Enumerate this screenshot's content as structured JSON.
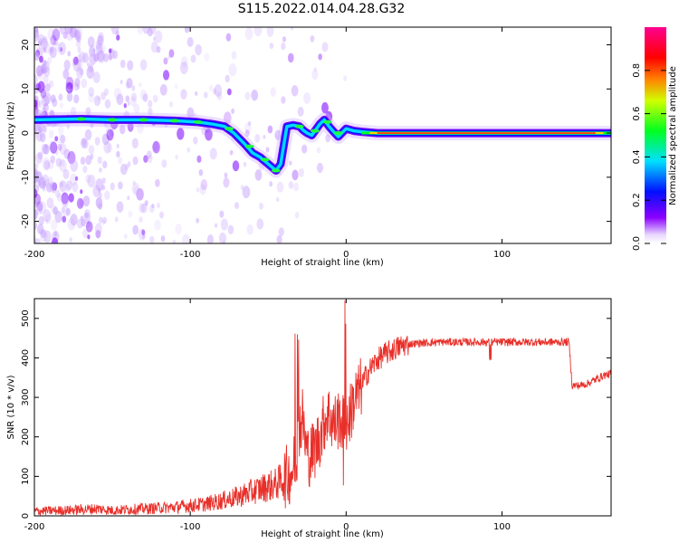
{
  "title": "S115.2022.014.04.28.G32",
  "chart_data": [
    {
      "type": "heatmap",
      "title": "",
      "xlabel": "Height of straight line (km)",
      "ylabel": "Frequency (Hz)",
      "xlim": [
        -200,
        170
      ],
      "ylim": [
        -25,
        24
      ],
      "xticks": [
        -200,
        -100,
        0,
        100
      ],
      "yticks": [
        -20,
        -10,
        0,
        10,
        20
      ],
      "grid": false,
      "dominant_frequency_track": {
        "x": [
          -200,
          -170,
          -150,
          -130,
          -110,
          -95,
          -85,
          -78,
          -72,
          -65,
          -60,
          -55,
          -50,
          -45,
          -42,
          -38,
          -34,
          -30,
          -27,
          -25,
          -22,
          -20,
          -17,
          -14,
          -11,
          -8,
          -5,
          -2,
          0,
          5,
          10,
          20,
          50,
          100,
          150,
          170
        ],
        "y": [
          3,
          3.2,
          3.0,
          3.0,
          2.8,
          2.5,
          2.0,
          1.5,
          0.0,
          -2.5,
          -4.5,
          -5.5,
          -7.0,
          -8.5,
          -7.0,
          1.5,
          1.8,
          1.5,
          0.5,
          0.0,
          -0.5,
          0.5,
          2.0,
          3.0,
          1.5,
          0.3,
          -0.8,
          0.3,
          1.0,
          0.5,
          0.3,
          0.0,
          0.0,
          0.0,
          0.0,
          0.0
        ]
      },
      "colorbar": {
        "label": "Normalized spectral amplitude",
        "range": [
          0.0,
          1.0
        ],
        "ticks": [
          0.0,
          0.2,
          0.4,
          0.6,
          0.8
        ],
        "tick_labels": [
          "0.0",
          "0.2",
          "0.4",
          "0.6",
          "0.8"
        ],
        "colormap": "rainbow (white-violet-blue-cyan-green-yellow-red-magenta)"
      }
    },
    {
      "type": "line",
      "title": "",
      "xlabel": "Height of straight line (km)",
      "ylabel": "SNR (10 * v/v)",
      "xlim": [
        -200,
        170
      ],
      "ylim": [
        0,
        550
      ],
      "xticks": [
        -200,
        -100,
        0,
        100
      ],
      "yticks": [
        0,
        100,
        200,
        300,
        400,
        500
      ],
      "grid": false,
      "series": [
        {
          "color": "#e8302a",
          "x": [
            -200,
            -180,
            -160,
            -150,
            -130,
            -110,
            -100,
            -90,
            -80,
            -70,
            -60,
            -50,
            -45,
            -40,
            -35,
            -32,
            -30,
            -28,
            -26,
            -24,
            -22,
            -20,
            -18,
            -16,
            -14,
            -12,
            -10,
            -8,
            -6,
            -4,
            -2,
            0,
            2,
            4,
            6,
            8,
            10,
            12,
            15,
            20,
            25,
            30,
            35,
            40,
            50,
            60,
            70,
            80,
            90,
            100,
            110,
            120,
            130,
            140,
            143,
            145,
            150,
            155,
            160,
            165,
            170
          ],
          "y": [
            12,
            14,
            18,
            14,
            18,
            22,
            26,
            30,
            38,
            48,
            62,
            75,
            80,
            95,
            110,
            150,
            220,
            250,
            180,
            150,
            160,
            170,
            190,
            210,
            240,
            260,
            250,
            230,
            240,
            250,
            235,
            230,
            250,
            280,
            300,
            310,
            330,
            350,
            370,
            395,
            410,
            420,
            430,
            435,
            438,
            440,
            440,
            440,
            440,
            440,
            440,
            440,
            440,
            440,
            440,
            330,
            330,
            335,
            345,
            355,
            360
          ]
        }
      ]
    }
  ]
}
